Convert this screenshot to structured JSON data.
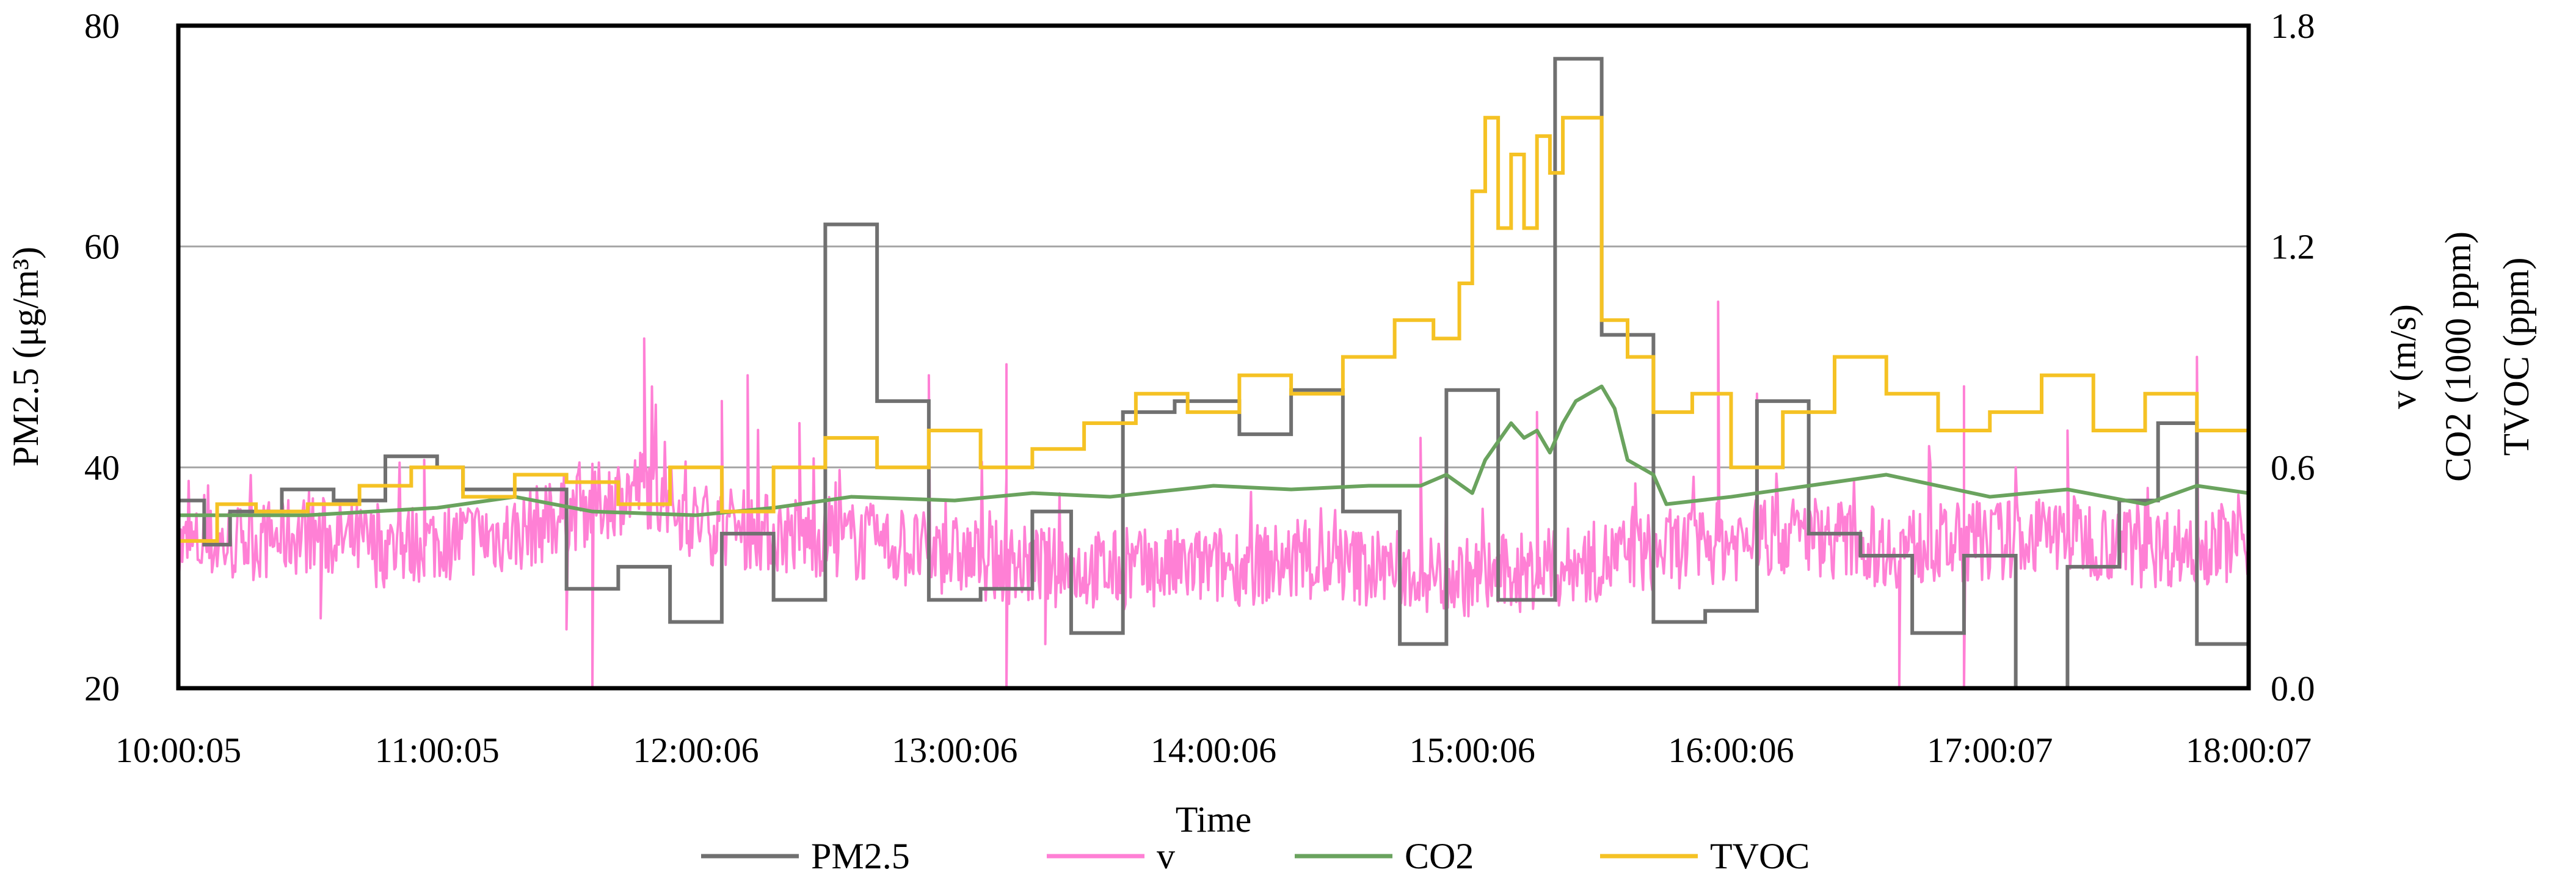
{
  "chart_data": {
    "type": "line",
    "xlabel": "Time",
    "x_categories": [
      "10:00:05",
      "11:00:05",
      "12:00:06",
      "13:00:06",
      "14:00:06",
      "15:00:06",
      "16:00:06",
      "17:00:07",
      "18:00:07"
    ],
    "y_left": {
      "label": "PM2.5 (μg/m³)",
      "range": [
        20,
        80
      ],
      "ticks": [
        "20",
        "40",
        "60",
        "80"
      ]
    },
    "y_right": {
      "labels": [
        "v (m/s)",
        "CO2 (1000 ppm)",
        "TVOC (ppm)"
      ],
      "range": [
        0,
        1.8
      ],
      "ticks": [
        "0.0",
        "0.6",
        "1.2",
        "1.8"
      ]
    },
    "grid": true,
    "legend": [
      "PM2.5",
      "v",
      "CO2",
      "TVOC"
    ],
    "series": [
      {
        "name": "PM2.5",
        "axis": "left",
        "color": "#707070",
        "shape": "step",
        "points": [
          [
            10.0,
            37
          ],
          [
            10.1,
            33
          ],
          [
            10.2,
            36
          ],
          [
            10.4,
            38
          ],
          [
            10.6,
            37
          ],
          [
            10.8,
            41
          ],
          [
            11.0,
            40
          ],
          [
            11.1,
            38
          ],
          [
            11.3,
            38
          ],
          [
            11.5,
            29
          ],
          [
            11.7,
            31
          ],
          [
            11.9,
            26
          ],
          [
            12.1,
            34
          ],
          [
            12.3,
            28
          ],
          [
            12.5,
            62
          ],
          [
            12.7,
            46
          ],
          [
            12.9,
            28
          ],
          [
            13.1,
            29
          ],
          [
            13.3,
            36
          ],
          [
            13.45,
            25
          ],
          [
            13.65,
            45
          ],
          [
            13.85,
            46
          ],
          [
            14.1,
            43
          ],
          [
            14.3,
            47
          ],
          [
            14.5,
            36
          ],
          [
            14.72,
            24
          ],
          [
            14.9,
            47
          ],
          [
            15.1,
            28
          ],
          [
            15.32,
            77
          ],
          [
            15.5,
            52
          ],
          [
            15.7,
            26
          ],
          [
            15.9,
            27
          ],
          [
            16.1,
            46
          ],
          [
            16.3,
            34
          ],
          [
            16.5,
            32
          ],
          [
            16.7,
            25
          ],
          [
            16.9,
            32
          ],
          [
            17.1,
            18
          ],
          [
            17.3,
            31
          ],
          [
            17.5,
            37
          ],
          [
            17.65,
            44
          ],
          [
            17.8,
            24
          ],
          [
            18.0,
            33
          ]
        ]
      },
      {
        "name": "v",
        "axis": "right",
        "color": "#ff80d5",
        "shape": "noisy",
        "points": [
          [
            10.0,
            0.38
          ],
          [
            10.3,
            0.4
          ],
          [
            10.5,
            0.42
          ],
          [
            10.8,
            0.38
          ],
          [
            11.0,
            0.4
          ],
          [
            11.3,
            0.42
          ],
          [
            11.6,
            0.5
          ],
          [
            11.8,
            0.55
          ],
          [
            12.0,
            0.45
          ],
          [
            12.3,
            0.42
          ],
          [
            12.6,
            0.4
          ],
          [
            13.0,
            0.36
          ],
          [
            13.3,
            0.33
          ],
          [
            13.6,
            0.32
          ],
          [
            14.0,
            0.33
          ],
          [
            14.3,
            0.34
          ],
          [
            14.6,
            0.33
          ],
          [
            15.0,
            0.3
          ],
          [
            15.3,
            0.32
          ],
          [
            15.6,
            0.36
          ],
          [
            16.0,
            0.4
          ],
          [
            16.3,
            0.42
          ],
          [
            16.6,
            0.38
          ],
          [
            17.0,
            0.4
          ],
          [
            17.3,
            0.42
          ],
          [
            17.6,
            0.38
          ],
          [
            18.0,
            0.4
          ]
        ],
        "peaks": [
          [
            10.95,
            0.62
          ],
          [
            11.8,
            0.95
          ],
          [
            12.1,
            0.78
          ],
          [
            12.2,
            0.85
          ],
          [
            12.4,
            0.72
          ],
          [
            12.9,
            0.85
          ],
          [
            13.2,
            0.88
          ],
          [
            14.8,
            0.68
          ],
          [
            15.25,
            0.75
          ],
          [
            15.95,
            1.05
          ],
          [
            16.1,
            0.8
          ],
          [
            16.9,
            0.82
          ],
          [
            17.3,
            0.7
          ],
          [
            17.8,
            0.9
          ]
        ],
        "dips": [
          [
            11.6,
            0.0
          ],
          [
            13.2,
            0.0
          ],
          [
            16.65,
            0.0
          ],
          [
            16.9,
            0.0
          ],
          [
            13.35,
            0.12
          ],
          [
            11.5,
            0.16
          ],
          [
            10.55,
            0.19
          ]
        ]
      },
      {
        "name": "CO2",
        "axis": "right",
        "color": "#6aa35e",
        "shape": "smooth",
        "points": [
          [
            10.0,
            0.47
          ],
          [
            10.5,
            0.47
          ],
          [
            11.0,
            0.49
          ],
          [
            11.3,
            0.52
          ],
          [
            11.6,
            0.48
          ],
          [
            12.0,
            0.47
          ],
          [
            12.3,
            0.49
          ],
          [
            12.6,
            0.52
          ],
          [
            13.0,
            0.51
          ],
          [
            13.3,
            0.53
          ],
          [
            13.6,
            0.52
          ],
          [
            14.0,
            0.55
          ],
          [
            14.3,
            0.54
          ],
          [
            14.6,
            0.55
          ],
          [
            14.8,
            0.55
          ],
          [
            14.9,
            0.58
          ],
          [
            15.0,
            0.53
          ],
          [
            15.05,
            0.62
          ],
          [
            15.15,
            0.72
          ],
          [
            15.2,
            0.68
          ],
          [
            15.25,
            0.7
          ],
          [
            15.3,
            0.64
          ],
          [
            15.35,
            0.72
          ],
          [
            15.4,
            0.78
          ],
          [
            15.5,
            0.82
          ],
          [
            15.55,
            0.76
          ],
          [
            15.6,
            0.62
          ],
          [
            15.7,
            0.58
          ],
          [
            15.75,
            0.5
          ],
          [
            16.0,
            0.52
          ],
          [
            16.3,
            0.55
          ],
          [
            16.6,
            0.58
          ],
          [
            17.0,
            0.52
          ],
          [
            17.3,
            0.54
          ],
          [
            17.6,
            0.5
          ],
          [
            17.8,
            0.55
          ],
          [
            18.0,
            0.53
          ]
        ]
      },
      {
        "name": "TVOC",
        "axis": "right",
        "color": "#f5c224",
        "shape": "step",
        "points": [
          [
            10.0,
            0.4
          ],
          [
            10.15,
            0.5
          ],
          [
            10.3,
            0.48
          ],
          [
            10.5,
            0.5
          ],
          [
            10.7,
            0.55
          ],
          [
            10.9,
            0.6
          ],
          [
            11.1,
            0.52
          ],
          [
            11.3,
            0.58
          ],
          [
            11.5,
            0.56
          ],
          [
            11.7,
            0.5
          ],
          [
            11.9,
            0.6
          ],
          [
            12.1,
            0.48
          ],
          [
            12.3,
            0.6
          ],
          [
            12.5,
            0.68
          ],
          [
            12.7,
            0.6
          ],
          [
            12.9,
            0.7
          ],
          [
            13.1,
            0.6
          ],
          [
            13.3,
            0.65
          ],
          [
            13.5,
            0.72
          ],
          [
            13.7,
            0.8
          ],
          [
            13.9,
            0.75
          ],
          [
            14.1,
            0.85
          ],
          [
            14.3,
            0.8
          ],
          [
            14.5,
            0.9
          ],
          [
            14.7,
            1.0
          ],
          [
            14.85,
            0.95
          ],
          [
            14.95,
            1.1
          ],
          [
            15.0,
            1.35
          ],
          [
            15.05,
            1.55
          ],
          [
            15.1,
            1.25
          ],
          [
            15.15,
            1.45
          ],
          [
            15.2,
            1.25
          ],
          [
            15.25,
            1.5
          ],
          [
            15.3,
            1.4
          ],
          [
            15.35,
            1.55
          ],
          [
            15.45,
            1.55
          ],
          [
            15.5,
            1.0
          ],
          [
            15.6,
            0.9
          ],
          [
            15.7,
            0.75
          ],
          [
            15.85,
            0.8
          ],
          [
            16.0,
            0.6
          ],
          [
            16.2,
            0.75
          ],
          [
            16.4,
            0.9
          ],
          [
            16.6,
            0.8
          ],
          [
            16.8,
            0.7
          ],
          [
            17.0,
            0.75
          ],
          [
            17.2,
            0.85
          ],
          [
            17.4,
            0.7
          ],
          [
            17.6,
            0.8
          ],
          [
            17.8,
            0.7
          ],
          [
            18.0,
            0.6
          ]
        ]
      }
    ]
  }
}
